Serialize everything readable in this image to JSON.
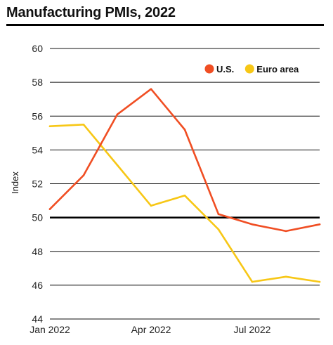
{
  "colors": {
    "us": "#f04e23",
    "euro": "#f7c716",
    "grid": "#111111",
    "reference": "#000000"
  },
  "chart_data": {
    "type": "line",
    "title": "Manufacturing PMIs, 2022",
    "ylabel": "Index",
    "xlabel": "",
    "ylim": [
      44,
      60
    ],
    "yticks": [
      44,
      46,
      48,
      50,
      52,
      54,
      56,
      58,
      60
    ],
    "x": [
      "Jan 2022",
      "Feb 2022",
      "Mar 2022",
      "Apr 2022",
      "May 2022",
      "Jun 2022",
      "Jul 2022",
      "Aug 2022",
      "Sep 2022"
    ],
    "xticks": [
      "Jan 2022",
      "Apr 2022",
      "Jul 2022"
    ],
    "reference_line": 50,
    "grid": true,
    "legend_position": "top-right",
    "series": [
      {
        "name": "U.S.",
        "color": "#f04e23",
        "values": [
          50.5,
          52.5,
          56.1,
          57.6,
          55.2,
          50.2,
          49.6,
          49.2,
          49.6
        ]
      },
      {
        "name": "Euro area",
        "color": "#f7c716",
        "values": [
          55.4,
          55.5,
          53.1,
          50.7,
          51.3,
          49.3,
          46.2,
          46.5,
          46.2
        ]
      }
    ]
  }
}
